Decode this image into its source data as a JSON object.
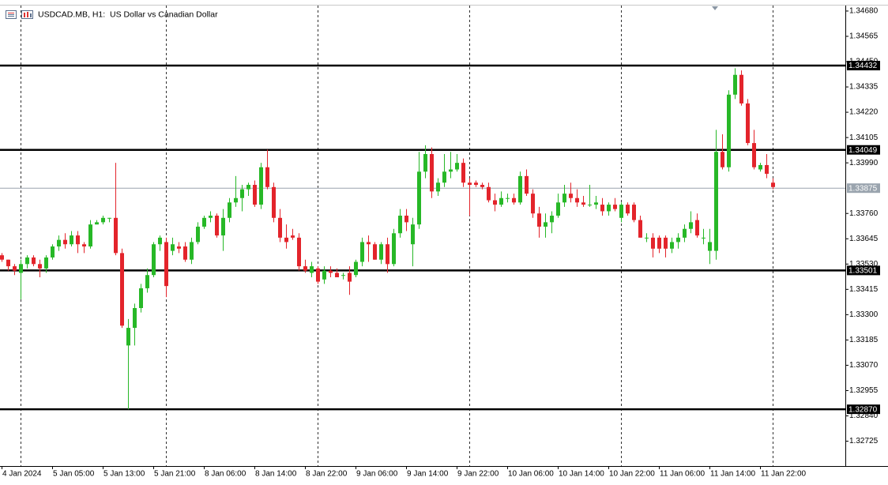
{
  "chart_data": {
    "type": "candlestick",
    "title": "USDCAD.MB, H1:  US Dollar vs Canadian Dollar",
    "categories": [
      "4 Jan 2024",
      null,
      null,
      null,
      null,
      null,
      null,
      null,
      "5 Jan 05:00",
      null,
      null,
      null,
      null,
      null,
      null,
      null,
      "5 Jan 13:00",
      null,
      null,
      null,
      null,
      null,
      null,
      null,
      "5 Jan 21:00",
      null,
      null,
      null,
      null,
      null,
      null,
      null,
      "8 Jan 06:00",
      null,
      null,
      null,
      null,
      null,
      null,
      null,
      "8 Jan 14:00",
      null,
      null,
      null,
      null,
      null,
      null,
      null,
      "8 Jan 22:00",
      null,
      null,
      null,
      null,
      null,
      null,
      null,
      "9 Jan 06:00",
      null,
      null,
      null,
      null,
      null,
      null,
      null,
      "9 Jan 14:00",
      null,
      null,
      null,
      null,
      null,
      null,
      null,
      "9 Jan 22:00",
      null,
      null,
      null,
      null,
      null,
      null,
      null,
      "10 Jan 06:00",
      null,
      null,
      null,
      null,
      null,
      null,
      null,
      "10 Jan 14:00",
      null,
      null,
      null,
      null,
      null,
      null,
      null,
      "10 Jan 22:00",
      null,
      null,
      null,
      null,
      null,
      null,
      null,
      "11 Jan 06:00",
      null,
      null,
      null,
      null,
      null,
      null,
      null,
      "11 Jan 14:00",
      null,
      null,
      null,
      null,
      null,
      null,
      null,
      "11 Jan 22:00",
      null,
      null
    ],
    "open": [
      1.3357,
      1.3355,
      1.3352,
      1.3349,
      1.3353,
      1.3356,
      1.3353,
      1.3351,
      1.3356,
      1.3361,
      1.3364,
      1.3362,
      1.3366,
      1.3362,
      1.3361,
      1.3371,
      1.3372,
      1.3374,
      1.3374,
      1.3358,
      1.3316,
      1.3324,
      1.3333,
      1.3342,
      1.3348,
      1.3362,
      1.3363,
      1.3359,
      1.3361,
      1.3361,
      1.3355,
      1.3363,
      1.337,
      1.3374,
      1.3375,
      1.3366,
      1.3374,
      1.3381,
      1.3383,
      1.3387,
      1.3389,
      1.338,
      1.3397,
      1.3388,
      1.3374,
      1.3365,
      1.3366,
      1.3365,
      1.3352,
      1.3349,
      1.3351,
      1.3346,
      1.335,
      1.3349,
      1.3348,
      1.3349,
      1.3348,
      1.3354,
      1.3363,
      1.3362,
      1.3355,
      1.3362,
      1.3353,
      1.3367,
      1.3375,
      1.3362,
      1.3371,
      1.3395,
      1.3403,
      1.3386,
      1.339,
      1.3395,
      1.3396,
      1.3399,
      1.339,
      1.339,
      1.3389,
      1.3388,
      1.3382,
      1.338,
      1.3383,
      1.3383,
      1.3381,
      1.3393,
      1.3385,
      1.3376,
      1.337,
      1.3372,
      1.3375,
      1.3381,
      1.3385,
      1.3383,
      1.3381,
      1.338,
      1.338,
      1.338,
      1.3377,
      1.338,
      1.3374,
      1.338,
      1.338,
      1.3373,
      1.3365,
      1.3365,
      1.3365,
      1.3365,
      1.336,
      1.3363,
      1.3365,
      1.3369,
      1.3373,
      1.3365,
      1.3359,
      1.3359,
      1.3404,
      1.3397,
      1.343,
      1.3439,
      1.3426,
      1.3408,
      1.3396,
      1.3398,
      1.339
    ],
    "high": [
      1.3358,
      1.3355,
      1.3353,
      1.3355,
      1.3357,
      1.3357,
      1.3355,
      1.3357,
      1.3362,
      1.3366,
      1.3367,
      1.3368,
      1.3368,
      1.3363,
      1.3373,
      1.3373,
      1.3375,
      1.3374,
      1.3399,
      1.336,
      1.3328,
      1.3335,
      1.3344,
      1.3351,
      1.3363,
      1.3366,
      1.3365,
      1.3365,
      1.3363,
      1.3363,
      1.3365,
      1.3372,
      1.3375,
      1.3377,
      1.3376,
      1.3378,
      1.3383,
      1.3393,
      1.3389,
      1.339,
      1.3391,
      1.3399,
      1.3405,
      1.339,
      1.3378,
      1.3371,
      1.3369,
      1.3367,
      1.3355,
      1.3354,
      1.3352,
      1.3352,
      1.3352,
      1.3351,
      1.3349,
      1.3352,
      1.3355,
      1.3365,
      1.3366,
      1.3363,
      1.3363,
      1.3365,
      1.3369,
      1.3378,
      1.3378,
      1.3374,
      1.3404,
      1.3407,
      1.3406,
      1.3392,
      1.3403,
      1.3404,
      1.3403,
      1.3401,
      1.3392,
      1.3391,
      1.339,
      1.339,
      1.3385,
      1.3386,
      1.3385,
      1.3385,
      1.3395,
      1.3396,
      1.3387,
      1.3379,
      1.3376,
      1.3377,
      1.3385,
      1.3389,
      1.339,
      1.3387,
      1.3384,
      1.3389,
      1.3384,
      1.3383,
      1.3381,
      1.3383,
      1.3381,
      1.3381,
      1.3381,
      1.3375,
      1.3367,
      1.3367,
      1.3366,
      1.3366,
      1.3365,
      1.3367,
      1.3371,
      1.3377,
      1.3376,
      1.3369,
      1.3369,
      1.3414,
      1.3412,
      1.3432,
      1.3442,
      1.3441,
      1.3428,
      1.3414,
      1.3399,
      1.3403,
      1.3392
    ],
    "low": [
      1.3354,
      1.335,
      1.3348,
      1.3337,
      1.3351,
      1.3352,
      1.3347,
      1.3349,
      1.3355,
      1.3359,
      1.336,
      1.3361,
      1.3358,
      1.3358,
      1.336,
      1.3371,
      1.3371,
      1.3372,
      1.3357,
      1.3324,
      1.3287,
      1.3316,
      1.3331,
      1.334,
      1.3347,
      1.3359,
      1.3338,
      1.3357,
      1.3358,
      1.3354,
      1.3353,
      1.3362,
      1.3369,
      1.3372,
      1.3365,
      1.3359,
      1.3372,
      1.3379,
      1.3377,
      1.3384,
      1.3379,
      1.3378,
      1.3387,
      1.3372,
      1.3363,
      1.336,
      1.3364,
      1.335,
      1.3349,
      1.3347,
      1.3344,
      1.3344,
      1.3347,
      1.3347,
      1.3346,
      1.3339,
      1.3347,
      1.3352,
      1.3354,
      1.3355,
      1.3353,
      1.3349,
      1.3352,
      1.3365,
      1.3368,
      1.3352,
      1.3369,
      1.3392,
      1.3383,
      1.3384,
      1.3388,
      1.3392,
      1.3395,
      1.3388,
      1.3375,
      1.3388,
      1.3387,
      1.3381,
      1.3377,
      1.3379,
      1.3381,
      1.338,
      1.338,
      1.3384,
      1.3374,
      1.3365,
      1.3365,
      1.3367,
      1.3374,
      1.3379,
      1.3381,
      1.3379,
      1.3379,
      1.3379,
      1.3378,
      1.3375,
      1.3375,
      1.3377,
      1.3372,
      1.3375,
      1.3372,
      1.3365,
      1.3363,
      1.3356,
      1.3358,
      1.3356,
      1.3358,
      1.336,
      1.3363,
      1.3367,
      1.3365,
      1.3362,
      1.3353,
      1.3355,
      1.3396,
      1.3395,
      1.3428,
      1.3425,
      1.3407,
      1.3396,
      1.3395,
      1.3392,
      1.3387
    ],
    "close": [
      1.3355,
      1.3352,
      1.335,
      1.3353,
      1.3356,
      1.3353,
      1.3351,
      1.3356,
      1.3361,
      1.3364,
      1.3362,
      1.3366,
      1.3362,
      1.3361,
      1.3371,
      1.3372,
      1.3374,
      1.3374,
      1.3358,
      1.3325,
      1.3324,
      1.3333,
      1.3342,
      1.3348,
      1.3362,
      1.3365,
      1.3343,
      1.3362,
      1.336,
      1.3355,
      1.3363,
      1.337,
      1.3374,
      1.3375,
      1.3366,
      1.3374,
      1.3381,
      1.3383,
      1.3387,
      1.3389,
      1.338,
      1.3397,
      1.3388,
      1.3374,
      1.3365,
      1.3363,
      1.3365,
      1.3352,
      1.335,
      1.3352,
      1.3345,
      1.335,
      1.3349,
      1.3347,
      1.3348,
      1.3345,
      1.3354,
      1.3363,
      1.3362,
      1.3355,
      1.3362,
      1.3353,
      1.3367,
      1.3375,
      1.3372,
      1.3371,
      1.3395,
      1.3403,
      1.3386,
      1.339,
      1.3395,
      1.3396,
      1.3399,
      1.339,
      1.3389,
      1.3389,
      1.3388,
      1.3382,
      1.338,
      1.3383,
      1.3383,
      1.3381,
      1.3393,
      1.3385,
      1.3376,
      1.337,
      1.3372,
      1.3375,
      1.3381,
      1.3385,
      1.3383,
      1.3381,
      1.338,
      1.338,
      1.3381,
      1.3377,
      1.338,
      1.3378,
      1.338,
      1.3376,
      1.3373,
      1.3365,
      1.3365,
      1.336,
      1.336,
      1.336,
      1.3363,
      1.3365,
      1.3369,
      1.3372,
      1.3366,
      1.3365,
      1.3363,
      1.3404,
      1.3397,
      1.343,
      1.3439,
      1.3426,
      1.3408,
      1.3397,
      1.3398,
      1.3394,
      1.3388
    ],
    "up_color": "#27b827",
    "down_color": "#e3242b",
    "ylim": [
      1.32612,
      1.34705
    ],
    "yticks": [
      {
        "value": 1.3468,
        "label": "1.34680"
      },
      1.34565,
      {
        "value": 1.3445,
        "label": "1.34450"
      },
      1.34335,
      {
        "value": 1.3422,
        "label": "1.34220"
      },
      1.34105,
      {
        "value": 1.3399,
        "label": "1.33990"
      },
      {
        "value": 1.3376,
        "label": "1.33760"
      },
      1.33645,
      {
        "value": 1.3353,
        "label": "1.33530"
      },
      1.33415,
      {
        "value": 1.333,
        "label": "1.33300"
      },
      1.33185,
      {
        "value": 1.3307,
        "label": "1.33070"
      },
      1.32955,
      {
        "value": 1.3284,
        "label": "1.32840"
      },
      1.32725
    ],
    "levels": [
      1.34432,
      1.34049,
      1.33501,
      {
        "value": 1.3287,
        "label": "1.32870"
      }
    ],
    "level_color": "#000000",
    "current_price": 1.33875,
    "current_price_color": "#9aa4ae"
  }
}
